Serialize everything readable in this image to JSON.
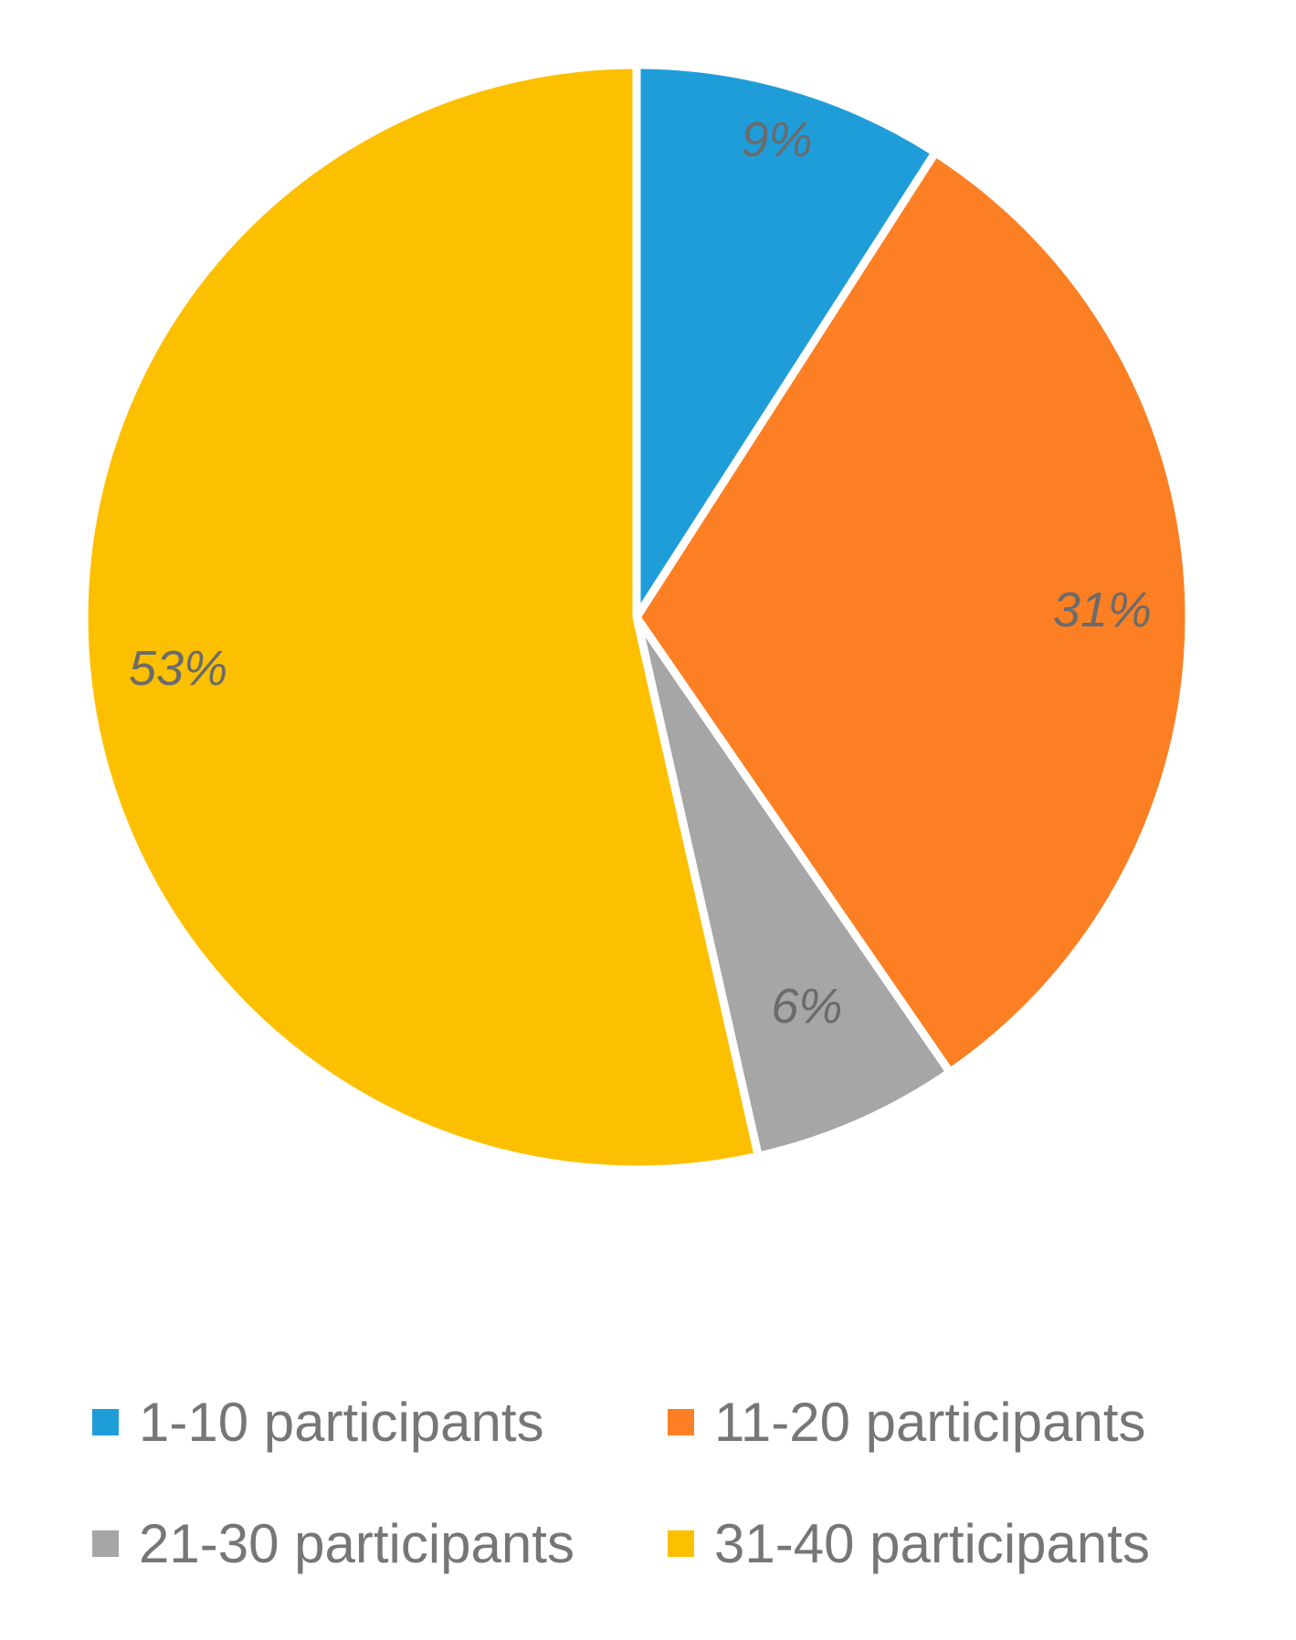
{
  "chart_data": {
    "type": "pie",
    "title": "",
    "categories": [
      "1-10 participants",
      "11-20 participants",
      "21-30 participants",
      "31-40 participants"
    ],
    "values": [
      9,
      31,
      6,
      53
    ],
    "value_labels": [
      "9%",
      "31%",
      "6%",
      "53%"
    ],
    "colors": [
      "#1f9dd9",
      "#fd7f23",
      "#a6a6a6",
      "#fdc000"
    ],
    "start_angle_deg": 0,
    "direction": "clockwise",
    "separator_color": "#ffffff",
    "label_color": "#6b6b6b",
    "legend_position": "bottom",
    "legend_text_color": "#767676"
  }
}
